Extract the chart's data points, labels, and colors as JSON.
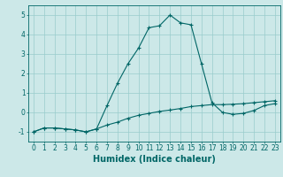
{
  "title": "",
  "xlabel": "Humidex (Indice chaleur)",
  "ylabel": "",
  "background_color": "#cce8e8",
  "grid_color": "#99cccc",
  "line_color": "#006666",
  "x_data": [
    0,
    1,
    2,
    3,
    4,
    5,
    6,
    7,
    8,
    9,
    10,
    11,
    12,
    13,
    14,
    15,
    16,
    17,
    18,
    19,
    20,
    21,
    22,
    23
  ],
  "y_data_main": [
    -1.0,
    -0.8,
    -0.8,
    -0.85,
    -0.9,
    -1.0,
    -0.85,
    0.35,
    1.5,
    2.5,
    3.3,
    4.35,
    4.45,
    5.0,
    4.6,
    4.5,
    2.5,
    0.5,
    0.0,
    -0.1,
    -0.05,
    0.1,
    0.35,
    0.45
  ],
  "y_data_secondary": [
    -1.0,
    -0.8,
    -0.8,
    -0.85,
    -0.9,
    -1.0,
    -0.85,
    -0.65,
    -0.5,
    -0.3,
    -0.15,
    -0.05,
    0.05,
    0.12,
    0.2,
    0.3,
    0.35,
    0.4,
    0.4,
    0.42,
    0.45,
    0.5,
    0.55,
    0.6
  ],
  "ylim": [
    -1.5,
    5.5
  ],
  "xlim": [
    -0.5,
    23.5
  ],
  "yticks": [
    -1,
    0,
    1,
    2,
    3,
    4,
    5
  ],
  "xticks": [
    0,
    1,
    2,
    3,
    4,
    5,
    6,
    7,
    8,
    9,
    10,
    11,
    12,
    13,
    14,
    15,
    16,
    17,
    18,
    19,
    20,
    21,
    22,
    23
  ],
  "tick_fontsize": 5.5,
  "xlabel_fontsize": 7.0,
  "line_width": 0.8,
  "marker_size": 3.0
}
